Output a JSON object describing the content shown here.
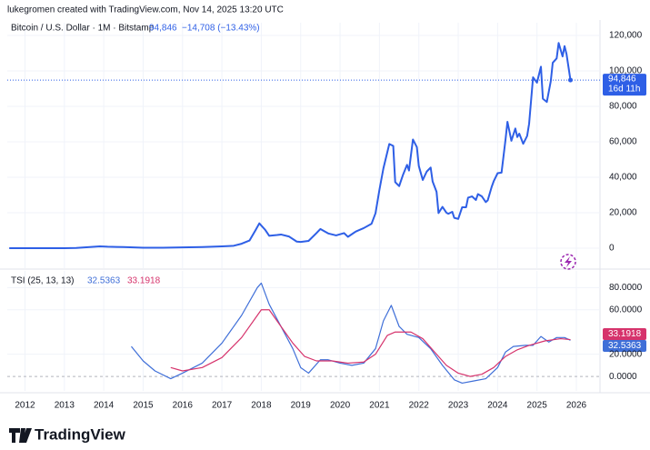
{
  "attribution": "lukegromen created with TradingView.com, Nov 14, 2025 13:20 UTC",
  "brand": "TradingView",
  "chart_data": [
    {
      "type": "line",
      "title": "Bitcoin / U.S. Dollar · 1M · Bitstamp",
      "last_label": "94,846",
      "change_label": "−14,708 (−13.43%)",
      "countdown": "16d 11h",
      "xlim": [
        2011.55,
        2026.6
      ],
      "ylim": [
        -11300,
        127200
      ],
      "yticks": [
        0,
        {
          "value": 20000,
          "label": "20,000"
        },
        {
          "value": 40000,
          "label": "40,000"
        },
        {
          "value": 60000,
          "label": "60,000"
        },
        {
          "value": 80000,
          "label": "80,000"
        },
        {
          "value": 100000,
          "label": "100,000"
        },
        {
          "value": 120000,
          "label": "120,000"
        }
      ],
      "series": [
        {
          "color": "#2e5fe6",
          "x": [
            2011.6,
            2012.0,
            2012.5,
            2013.0,
            2013.3,
            2013.9,
            2014.1,
            2014.5,
            2015.0,
            2015.5,
            2016.0,
            2016.5,
            2017.0,
            2017.3,
            2017.5,
            2017.7,
            2017.85,
            2017.95,
            2018.1,
            2018.2,
            2018.4,
            2018.5,
            2018.7,
            2018.9,
            2019.0,
            2019.2,
            2019.4,
            2019.5,
            2019.7,
            2019.9,
            2020.1,
            2020.2,
            2020.4,
            2020.6,
            2020.8,
            2020.9,
            2021.0,
            2021.1,
            2021.25,
            2021.35,
            2021.4,
            2021.5,
            2021.6,
            2021.7,
            2021.75,
            2021.85,
            2021.95,
            2022.0,
            2022.1,
            2022.2,
            2022.3,
            2022.35,
            2022.45,
            2022.5,
            2022.6,
            2022.7,
            2022.75,
            2022.85,
            2022.9,
            2023.0,
            2023.1,
            2023.2,
            2023.25,
            2023.35,
            2023.45,
            2023.5,
            2023.6,
            2023.7,
            2023.75,
            2023.85,
            2023.9,
            2024.0,
            2024.1,
            2024.2,
            2024.25,
            2024.35,
            2024.45,
            2024.5,
            2024.55,
            2024.65,
            2024.75,
            2024.8,
            2024.9,
            2025.0,
            2025.1,
            2025.15,
            2025.25,
            2025.35,
            2025.4,
            2025.5,
            2025.55,
            2025.65,
            2025.7,
            2025.75,
            2025.85
          ],
          "values": [
            5,
            5,
            7,
            13,
            100,
            1000,
            800,
            600,
            250,
            250,
            430,
            650,
            1000,
            1350,
            2500,
            4300,
            10000,
            14000,
            10300,
            7000,
            7400,
            7700,
            6600,
            3700,
            3500,
            4100,
            8500,
            10800,
            8300,
            7200,
            8500,
            6400,
            9400,
            11300,
            13800,
            19700,
            33000,
            45000,
            58800,
            57700,
            37300,
            35000,
            41500,
            47000,
            43800,
            61300,
            57000,
            46300,
            38500,
            43200,
            45500,
            37600,
            31800,
            19800,
            23300,
            20000,
            19400,
            20500,
            17100,
            16500,
            23100,
            23100,
            28500,
            29200,
            27200,
            30500,
            29200,
            26000,
            27000,
            34600,
            37700,
            42300,
            42600,
            61100,
            71300,
            60600,
            67500,
            62700,
            64600,
            58900,
            63300,
            70200,
            96400,
            93400,
            102400,
            84300,
            82500,
            94200,
            104600,
            107100,
            115800,
            108200,
            114000,
            109500,
            94846
          ]
        }
      ]
    },
    {
      "type": "line",
      "title": "TSI (25, 13, 13)",
      "xlim": [
        2011.55,
        2026.6
      ],
      "xticks": [
        2012,
        2013,
        2014,
        2015,
        2016,
        2017,
        2018,
        2019,
        2020,
        2021,
        2022,
        2023,
        2024,
        2025,
        2026
      ],
      "ylim": [
        -13,
        95
      ],
      "yticks": [
        {
          "value": 0,
          "label": "0.0000"
        },
        {
          "value": 20,
          "label": "20.0000"
        },
        {
          "value": 60,
          "label": "60.0000"
        },
        {
          "value": 80,
          "label": "80.0000"
        }
      ],
      "series": [
        {
          "color": "#3f6fd8",
          "x": [
            2014.7,
            2015.0,
            2015.3,
            2015.7,
            2016.0,
            2016.5,
            2017.0,
            2017.5,
            2017.9,
            2018.0,
            2018.2,
            2018.5,
            2018.8,
            2019.0,
            2019.2,
            2019.5,
            2019.7,
            2020.0,
            2020.3,
            2020.6,
            2020.9,
            2021.1,
            2021.3,
            2021.5,
            2021.7,
            2022.0,
            2022.3,
            2022.6,
            2022.9,
            2023.1,
            2023.4,
            2023.7,
            2024.0,
            2024.2,
            2024.4,
            2024.7,
            2024.9,
            2025.1,
            2025.3,
            2025.5,
            2025.7,
            2025.85
          ],
          "values": [
            27,
            14,
            5,
            -2,
            3,
            12,
            30,
            55,
            80,
            84,
            65,
            45,
            25,
            8,
            3,
            15,
            15,
            12,
            10,
            12,
            25,
            50,
            64,
            45,
            38,
            35,
            25,
            10,
            -3,
            -6,
            -4,
            -2,
            8,
            22,
            27,
            28,
            28,
            36,
            31,
            35,
            35,
            32.5363
          ]
        },
        {
          "color": "#d6336c",
          "x": [
            2015.7,
            2016.0,
            2016.5,
            2017.0,
            2017.5,
            2017.9,
            2018.0,
            2018.2,
            2018.5,
            2018.8,
            2019.1,
            2019.4,
            2019.8,
            2020.2,
            2020.6,
            2020.9,
            2021.2,
            2021.4,
            2021.8,
            2022.1,
            2022.4,
            2022.7,
            2023.0,
            2023.3,
            2023.6,
            2023.9,
            2024.2,
            2024.5,
            2024.8,
            2025.2,
            2025.6,
            2025.85
          ],
          "values": [
            8,
            5,
            8,
            17,
            35,
            55,
            60,
            60,
            45,
            30,
            18,
            14,
            14,
            12,
            13,
            20,
            37,
            40,
            40,
            34,
            22,
            10,
            3,
            0,
            2,
            8,
            18,
            24,
            28,
            32,
            34,
            33.1918
          ]
        }
      ]
    }
  ]
}
